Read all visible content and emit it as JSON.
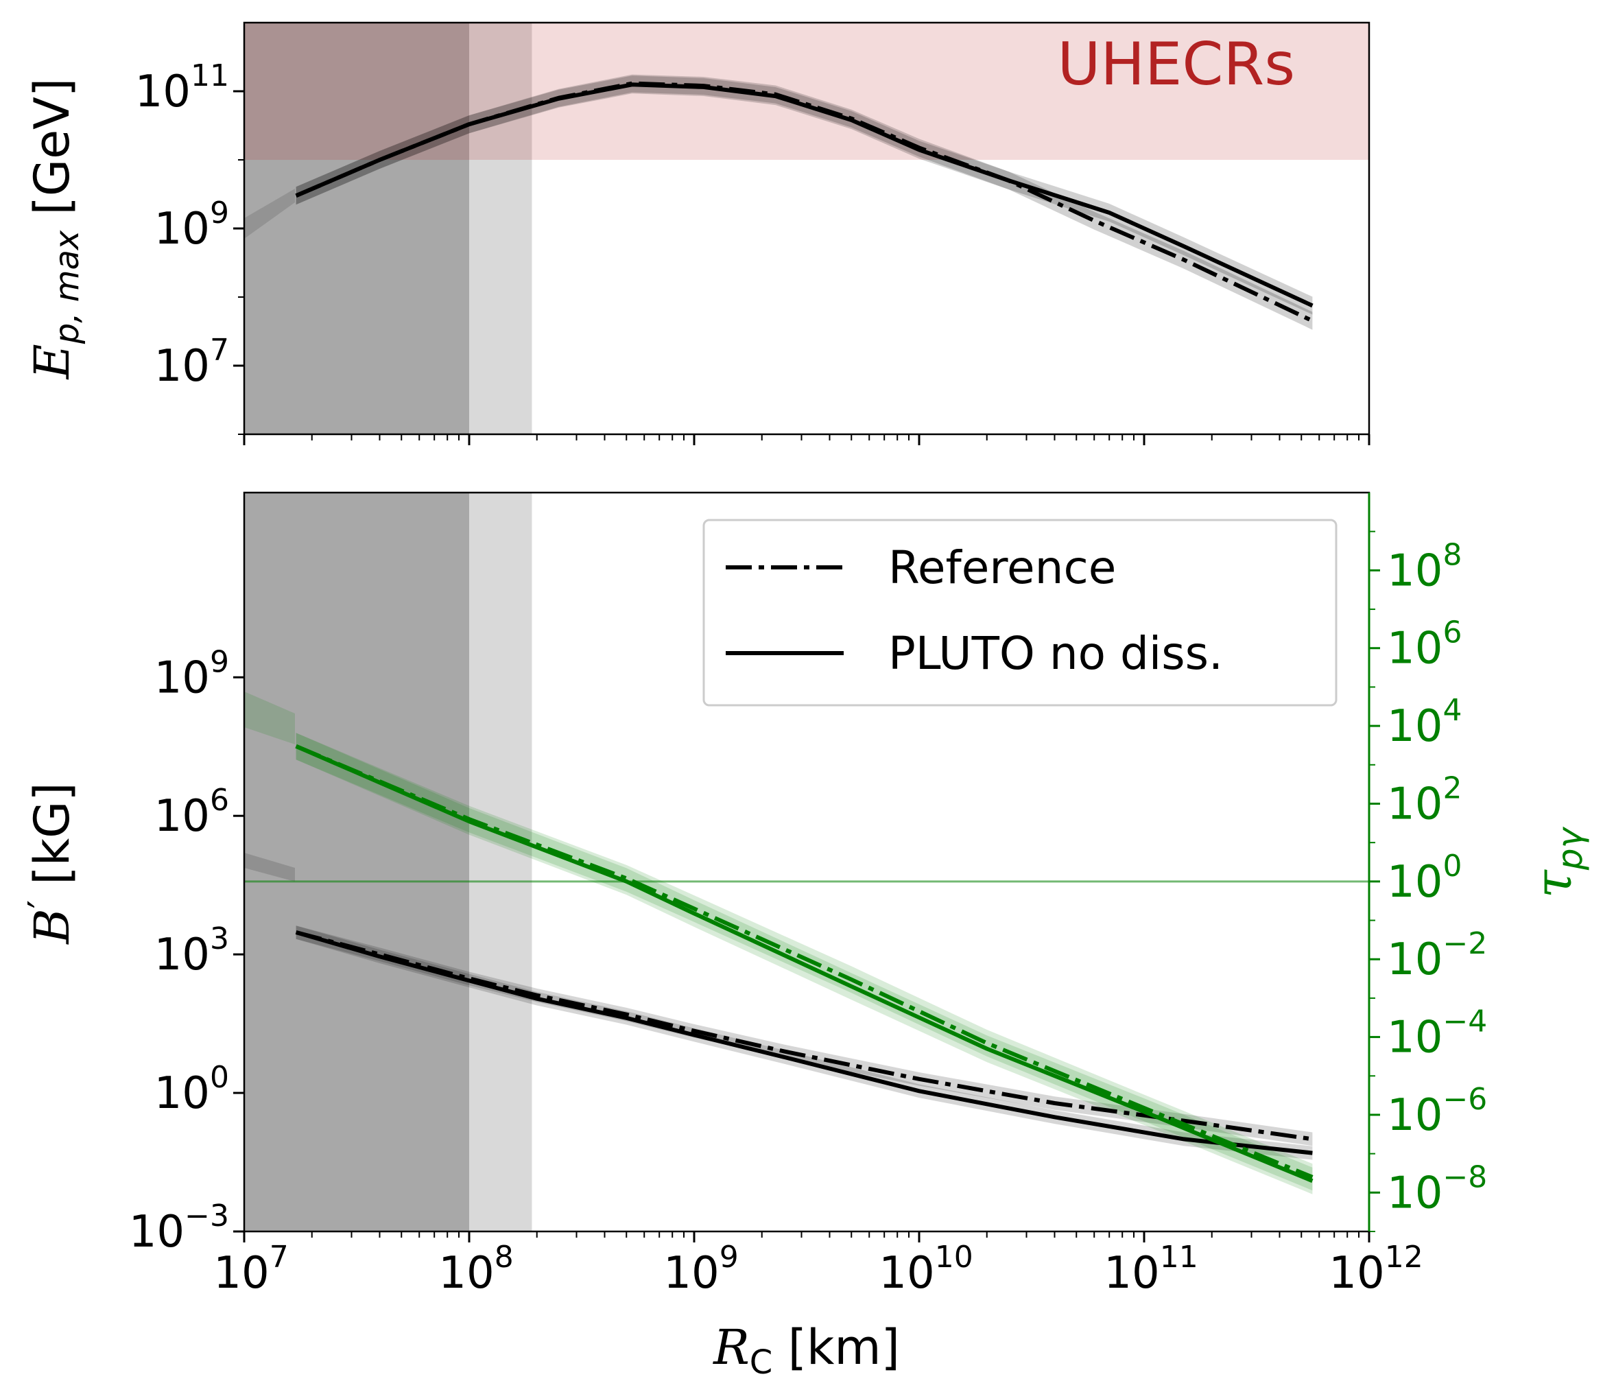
{
  "chart_data": [
    {
      "type": "line",
      "panel": "top",
      "ylabel_main": "E",
      "ylabel_sub": "p, max",
      "ylabel_unit": " [GeV]",
      "xscale": "log",
      "yscale": "log",
      "xlim": [
        10000000,
        1000000000000
      ],
      "ylim": [
        1000000,
        1000000000000
      ],
      "yticks": [
        {
          "exp": 7,
          "base": "10",
          "sup": "7"
        },
        {
          "exp": 9,
          "base": "10",
          "sup": "9"
        },
        {
          "exp": 11,
          "base": "10",
          "sup": "11"
        }
      ],
      "shaded_regions": [
        {
          "x_range": [
            10000000,
            100000000
          ],
          "shade": "dark-grey"
        },
        {
          "x_range": [
            100000000,
            190000000
          ],
          "shade": "light-grey"
        }
      ],
      "band": {
        "label": "UHECRs",
        "y_range": [
          10000000000,
          1000000000000
        ],
        "color": "#b22222"
      },
      "series": [
        {
          "name": "Reference",
          "style": "dashdot",
          "x": [
            17000000,
            40000000,
            100000000,
            250000000,
            530000000,
            1100000000,
            2300000000,
            5000000000,
            10000000000,
            25000000000,
            60000000000,
            150000000000,
            560000000000
          ],
          "y": [
            3000000000,
            10000000000,
            33000000000,
            80000000000,
            130000000000,
            120000000000,
            90000000000,
            40000000000,
            15000000000,
            5000000000,
            1300000000,
            350000000,
            45000000
          ]
        },
        {
          "name": "PLUTO no diss.",
          "style": "solid",
          "x": [
            17000000,
            40000000,
            100000000,
            250000000,
            530000000,
            1100000000,
            2300000000,
            5000000000,
            10000000000,
            25000000000,
            70000000000,
            150000000000,
            560000000000
          ],
          "y": [
            3000000000,
            10000000000,
            33000000000,
            78000000000,
            125000000000,
            115000000000,
            85000000000,
            38000000000,
            14000000000,
            5000000000,
            1700000000,
            550000000,
            75000000
          ]
        }
      ]
    },
    {
      "type": "line",
      "panel": "bottom",
      "xlabel_main": "R",
      "xlabel_sub": "C",
      "xlabel_unit": " [km]",
      "ylabel_main": "B",
      "ylabel_prime": "′",
      "ylabel_unit": " [kG]",
      "y2label_main": "τ",
      "y2label_sub": "pγ",
      "y2_color": "#008000",
      "xscale": "log",
      "yscale": "log",
      "xlim": [
        10000000,
        1000000000000
      ],
      "ylim": [
        0.001,
        10000000000000
      ],
      "y2lim": [
        1e-09,
        10000000000
      ],
      "xticks": [
        {
          "exp": 7,
          "base": "10",
          "sup": "7"
        },
        {
          "exp": 8,
          "base": "10",
          "sup": "8"
        },
        {
          "exp": 9,
          "base": "10",
          "sup": "9"
        },
        {
          "exp": 10,
          "base": "10",
          "sup": "10"
        },
        {
          "exp": 11,
          "base": "10",
          "sup": "11"
        },
        {
          "exp": 12,
          "base": "10",
          "sup": "12"
        }
      ],
      "yticks": [
        {
          "exp": -3,
          "base": "10",
          "sup": "−3"
        },
        {
          "exp": 0,
          "base": "10",
          "sup": "0"
        },
        {
          "exp": 3,
          "base": "10",
          "sup": "3"
        },
        {
          "exp": 6,
          "base": "10",
          "sup": "6"
        },
        {
          "exp": 9,
          "base": "10",
          "sup": "9"
        }
      ],
      "y2ticks": [
        {
          "exp": -8,
          "base": "10",
          "sup": "−8"
        },
        {
          "exp": -6,
          "base": "10",
          "sup": "−6"
        },
        {
          "exp": -4,
          "base": "10",
          "sup": "−4"
        },
        {
          "exp": -2,
          "base": "10",
          "sup": "−2"
        },
        {
          "exp": 0,
          "base": "10",
          "sup": "0"
        },
        {
          "exp": 2,
          "base": "10",
          "sup": "2"
        },
        {
          "exp": 4,
          "base": "10",
          "sup": "4"
        },
        {
          "exp": 6,
          "base": "10",
          "sup": "6"
        },
        {
          "exp": 8,
          "base": "10",
          "sup": "8"
        }
      ],
      "hline_y2": 1,
      "shaded_regions": [
        {
          "x_range": [
            10000000,
            100000000
          ],
          "shade": "dark-grey"
        },
        {
          "x_range": [
            100000000,
            190000000
          ],
          "shade": "light-grey"
        }
      ],
      "series": [
        {
          "name": "Reference",
          "axis": "left",
          "color": "#000000",
          "style": "dashdot",
          "x": [
            17000000,
            40000000,
            100000000,
            200000000,
            500000000,
            1000000000,
            2500000000,
            10000000000,
            40000000000,
            150000000000,
            560000000000
          ],
          "y": [
            3000,
            1000,
            300,
            130,
            50,
            22,
            8,
            2,
            0.6,
            0.25,
            0.1
          ]
        },
        {
          "name": "PLUTO no diss.",
          "axis": "left",
          "color": "#000000",
          "style": "solid",
          "x": [
            17000000,
            40000000,
            100000000,
            200000000,
            500000000,
            1000000000,
            2500000000,
            10000000000,
            40000000000,
            150000000000,
            560000000000
          ],
          "y": [
            3000,
            900,
            270,
            110,
            42,
            18,
            6,
            1.1,
            0.3,
            0.1,
            0.05
          ]
        },
        {
          "name": "Reference",
          "axis": "right",
          "color": "#008000",
          "style": "dashdot",
          "x": [
            17000000,
            100000000,
            500000000,
            1000000000,
            5000000000,
            20000000000,
            100000000000,
            560000000000
          ],
          "y": [
            3000,
            40,
            1.2,
            0.2,
            0.003,
            7e-05,
            1.5e-06,
            2.5e-08
          ]
        },
        {
          "name": "PLUTO no diss.",
          "axis": "right",
          "color": "#008000",
          "style": "solid",
          "x": [
            17000000,
            100000000,
            500000000,
            1000000000,
            5000000000,
            20000000000,
            100000000000,
            560000000000
          ],
          "y": [
            3000,
            35,
            1,
            0.15,
            0.002,
            5e-05,
            1.2e-06,
            2e-08
          ]
        }
      ],
      "legend": {
        "position": "upper-right",
        "entries": [
          {
            "label": "Reference",
            "style": "dashdot"
          },
          {
            "label": "PLUTO no diss.",
            "style": "solid"
          }
        ]
      }
    }
  ]
}
